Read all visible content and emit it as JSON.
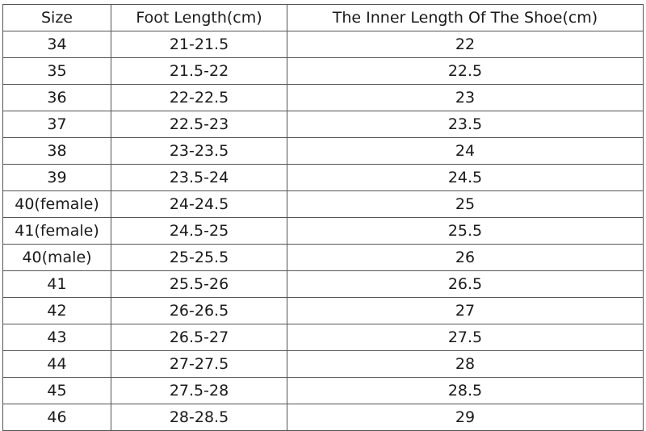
{
  "headers": [
    "Size",
    "Foot Length(cm)",
    "The Inner Length Of The Shoe(cm)"
  ],
  "rows": [
    [
      "34",
      "21-21.5",
      "22"
    ],
    [
      "35",
      "21.5-22",
      "22.5"
    ],
    [
      "36",
      "22-22.5",
      "23"
    ],
    [
      "37",
      "22.5-23",
      "23.5"
    ],
    [
      "38",
      "23-23.5",
      "24"
    ],
    [
      "39",
      "23.5-24",
      "24.5"
    ],
    [
      "40(female)",
      "24-24.5",
      "25"
    ],
    [
      "41(female)",
      "24.5-25",
      "25.5"
    ],
    [
      "40(male)",
      "25-25.5",
      "26"
    ],
    [
      "41",
      "25.5-26",
      "26.5"
    ],
    [
      "42",
      "26-26.5",
      "27"
    ],
    [
      "43",
      "26.5-27",
      "27.5"
    ],
    [
      "44",
      "27-27.5",
      "28"
    ],
    [
      "45",
      "27.5-28",
      "28.5"
    ],
    [
      "46",
      "28-28.5",
      "29"
    ]
  ]
}
